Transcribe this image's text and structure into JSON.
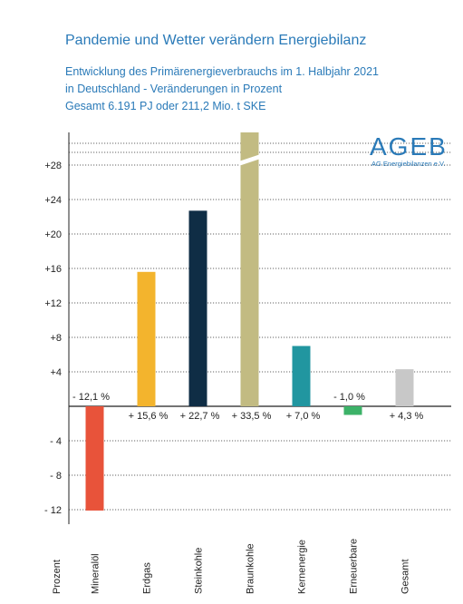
{
  "header": {
    "title": "Pandemie und Wetter verändern Energiebilanz",
    "subtitle_line1": "Entwicklung des Primärenergieverbrauchs im 1. Halbjahr 2021",
    "subtitle_line2": "in Deutschland - Veränderungen in Prozent",
    "subtitle_line3": "Gesamt 6.191 PJ oder 211,2 Mio. t SKE"
  },
  "logo": {
    "name": "AGEB",
    "tagline": "AG Energiebilanzen e.V."
  },
  "chart_data": {
    "type": "bar",
    "title": "Pandemie und Wetter verändern Energiebilanz",
    "ylabel": "Prozent",
    "categories": [
      "Mineralöl",
      "Erdgas",
      "Steinkohle",
      "Braunkohle",
      "Kernenergie",
      "Erneuerbare",
      "Gesamt"
    ],
    "values": [
      -12.1,
      15.6,
      22.7,
      33.5,
      7.0,
      -1.0,
      4.3
    ],
    "value_labels": [
      "- 12,1 %",
      "+ 15,6 %",
      "+ 22,7 %",
      "+ 33,5 %",
      "+ 7,0 %",
      "- 1,0 %",
      "+ 4,3 %"
    ],
    "colors": [
      "#e8533a",
      "#f3b42d",
      "#0f2d45",
      "#c2bb82",
      "#2196a0",
      "#3cb268",
      "#c8c8c8"
    ],
    "yticks": [
      28,
      24,
      20,
      16,
      12,
      8,
      4,
      -4,
      -8,
      -12
    ],
    "ytick_labels": [
      "+28",
      "+24",
      "+20",
      "+16",
      "+12",
      "+8",
      "+4",
      "- 4",
      "- 8",
      "- 12"
    ],
    "ylim": [
      -12.5,
      32
    ],
    "axis_break": true,
    "broken_bar_index": 3,
    "grid": true
  }
}
